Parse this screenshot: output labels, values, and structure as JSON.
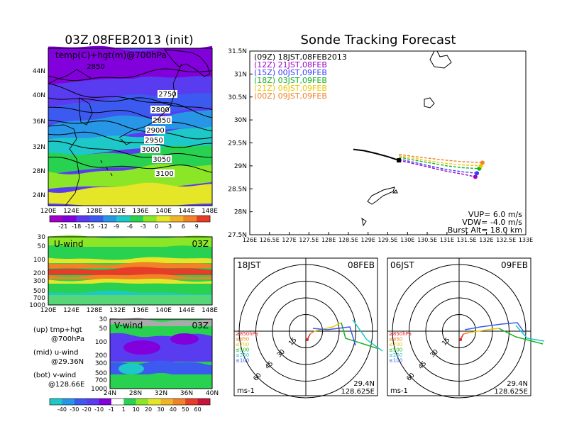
{
  "map_panel": {
    "title": "03Z,08FEB2013 (init)",
    "inner_label": "temp(C)+hgt(m)@700hPa",
    "lat_ticks": [
      "44N",
      "40N",
      "36N",
      "32N",
      "28N",
      "24N"
    ],
    "lon_ticks": [
      "120E",
      "124E",
      "128E",
      "132E",
      "136E",
      "140E",
      "144E",
      "148E"
    ],
    "contours": [
      {
        "label": "2750",
        "y": [
          15,
          2
        ]
      },
      {
        "label": "2800",
        "y": [
          40,
          60
        ]
      },
      {
        "label": "2850",
        "y": [
          25,
          70
        ]
      },
      {
        "label": "2900",
        "y": [
          55,
          90
        ]
      },
      {
        "label": "2950",
        "y": [
          78,
          106
        ]
      },
      {
        "label": "3000",
        "y": [
          100,
          122
        ]
      },
      {
        "label": "3050",
        "y": [
          118,
          140
        ]
      },
      {
        "label": "3100",
        "y": [
          142,
          160
        ]
      }
    ],
    "colorbar_labels": [
      "-21",
      "-18",
      "-15",
      "-12",
      "-9",
      "-6",
      "-3",
      "0",
      "3",
      "6",
      "9"
    ],
    "colorbar_colors": [
      "#a000c8",
      "#8200dc",
      "#5a3cf0",
      "#3c5af0",
      "#2896e6",
      "#1ec8c8",
      "#28d250",
      "#8ce628",
      "#e6e628",
      "#f0b428",
      "#f08228",
      "#e63c28"
    ]
  },
  "u_panel": {
    "label": "U-wind",
    "time": "03Z",
    "p_ticks": [
      "30",
      "50",
      "100",
      "200",
      "300",
      "500",
      "700",
      "1000"
    ],
    "x_ticks": [
      "120E",
      "124E",
      "128E",
      "132E",
      "136E",
      "140E",
      "144E",
      "148E"
    ]
  },
  "v_panel": {
    "label": "V-wind",
    "time": "03Z",
    "p_ticks": [
      "30",
      "50",
      "100",
      "200",
      "300",
      "500",
      "700",
      "1000"
    ],
    "x_ticks": [
      "24N",
      "28N",
      "32N",
      "36N",
      "40N"
    ],
    "colorbar_labels": [
      "-40",
      "-30",
      "-20",
      "-10",
      "-1",
      "1",
      "10",
      "20",
      "30",
      "40",
      "50",
      "60"
    ],
    "colorbar_colors": [
      "#1ec8c8",
      "#2896e6",
      "#3c5af0",
      "#5a3cf0",
      "#8200dc",
      "#ffffff",
      "#28d250",
      "#8ce628",
      "#e6e628",
      "#f0b428",
      "#f08228",
      "#e63c28",
      "#c8143c"
    ]
  },
  "legend_notes": [
    {
      "line1": "(up) tmp+hgt",
      "line2": "@700hPa"
    },
    {
      "line1": "(mid) u-wind",
      "line2": "@29.36N"
    },
    {
      "line1": "(bot) v-wind",
      "line2": "@128.66E"
    }
  ],
  "track_panel": {
    "title": "Sonde Tracking Forecast",
    "lat_ticks": [
      "31.5N",
      "31N",
      "30.5N",
      "30N",
      "29.5N",
      "29N",
      "28.5N",
      "28N",
      "27.5N"
    ],
    "lon_ticks": [
      "126E",
      "126.5E",
      "127E",
      "127.5E",
      "128E",
      "128.5E",
      "129E",
      "129.5E",
      "130E",
      "130.5E",
      "131E",
      "131.5E",
      "132E",
      "132.5E",
      "133E"
    ],
    "info": [
      "VUP= 6.0 m/s",
      "VDW= -4.0 m/s",
      "Burst Alt= 18.0 km"
    ]
  },
  "chart_data": {
    "type": "line",
    "title": "Sonde Tracking Forecast",
    "xlim": [
      126,
      133
    ],
    "ylim": [
      27.5,
      31.5
    ],
    "launch": {
      "lon": 128.625,
      "lat": 29.36
    },
    "series": [
      {
        "name": "(09Z) 18JST,08FEB2013",
        "color": "#000000",
        "lon": [
          128.625,
          128.9,
          129.2,
          129.5,
          129.78
        ],
        "lat": [
          29.36,
          29.33,
          29.27,
          29.2,
          29.12
        ]
      },
      {
        "name": "(12Z) 21JST,08FEB",
        "color": "#a000c8",
        "lon": [
          129.78,
          130.2,
          130.6,
          131.0,
          131.4,
          131.72
        ],
        "lat": [
          29.12,
          29.04,
          28.96,
          28.88,
          28.82,
          28.76
        ]
      },
      {
        "name": "(15Z) 00JST,09FEB",
        "color": "#3c3cff",
        "lon": [
          129.78,
          130.2,
          130.6,
          131.0,
          131.4,
          131.76
        ],
        "lat": [
          29.15,
          29.07,
          28.99,
          28.92,
          28.87,
          28.84
        ]
      },
      {
        "name": "(18Z) 03JST,09FEB",
        "color": "#14b41e",
        "lon": [
          129.78,
          130.2,
          130.6,
          131.0,
          131.4,
          131.82
        ],
        "lat": [
          29.19,
          29.12,
          29.06,
          29.0,
          28.96,
          28.94
        ]
      },
      {
        "name": "(21Z) 06JST,09FEB",
        "color": "#f0c800",
        "lon": [
          129.78,
          130.2,
          130.6,
          131.0,
          131.4,
          131.86
        ],
        "lat": [
          29.22,
          29.16,
          29.1,
          29.05,
          29.02,
          29.0
        ]
      },
      {
        "name": "(00Z) 09JST,09FEB",
        "color": "#f08228",
        "lon": [
          129.78,
          130.2,
          130.6,
          131.0,
          131.4,
          131.9
        ],
        "lat": [
          29.25,
          29.2,
          29.16,
          29.12,
          29.09,
          29.07
        ]
      }
    ]
  },
  "hodo_left": {
    "time": "18JST",
    "date": "08FEB",
    "rings": [
      "15",
      "30",
      "45",
      "60"
    ],
    "units": "ms-1",
    "lat": "29.4N",
    "lon": "128.625E",
    "levels": [
      "≥850hPa",
      "≤850",
      "≤700",
      "≤500",
      "≤250",
      "≤100"
    ],
    "level_colors": [
      "#e61e1e",
      "#f08228",
      "#e6c800",
      "#14b41e",
      "#1ec8c8",
      "#3c5af0"
    ]
  },
  "hodo_right": {
    "time": "06JST",
    "date": "09FEB",
    "rings": [
      "15",
      "30",
      "45",
      "60"
    ],
    "units": "ms-1",
    "lat": "29.4N",
    "lon": "128.625E",
    "levels": [
      "≥850hPa",
      "≤850",
      "≤700",
      "≤500",
      "≤250",
      "≤100"
    ],
    "level_colors": [
      "#e61e1e",
      "#f08228",
      "#e6c800",
      "#14b41e",
      "#1ec8c8",
      "#3c5af0"
    ]
  }
}
